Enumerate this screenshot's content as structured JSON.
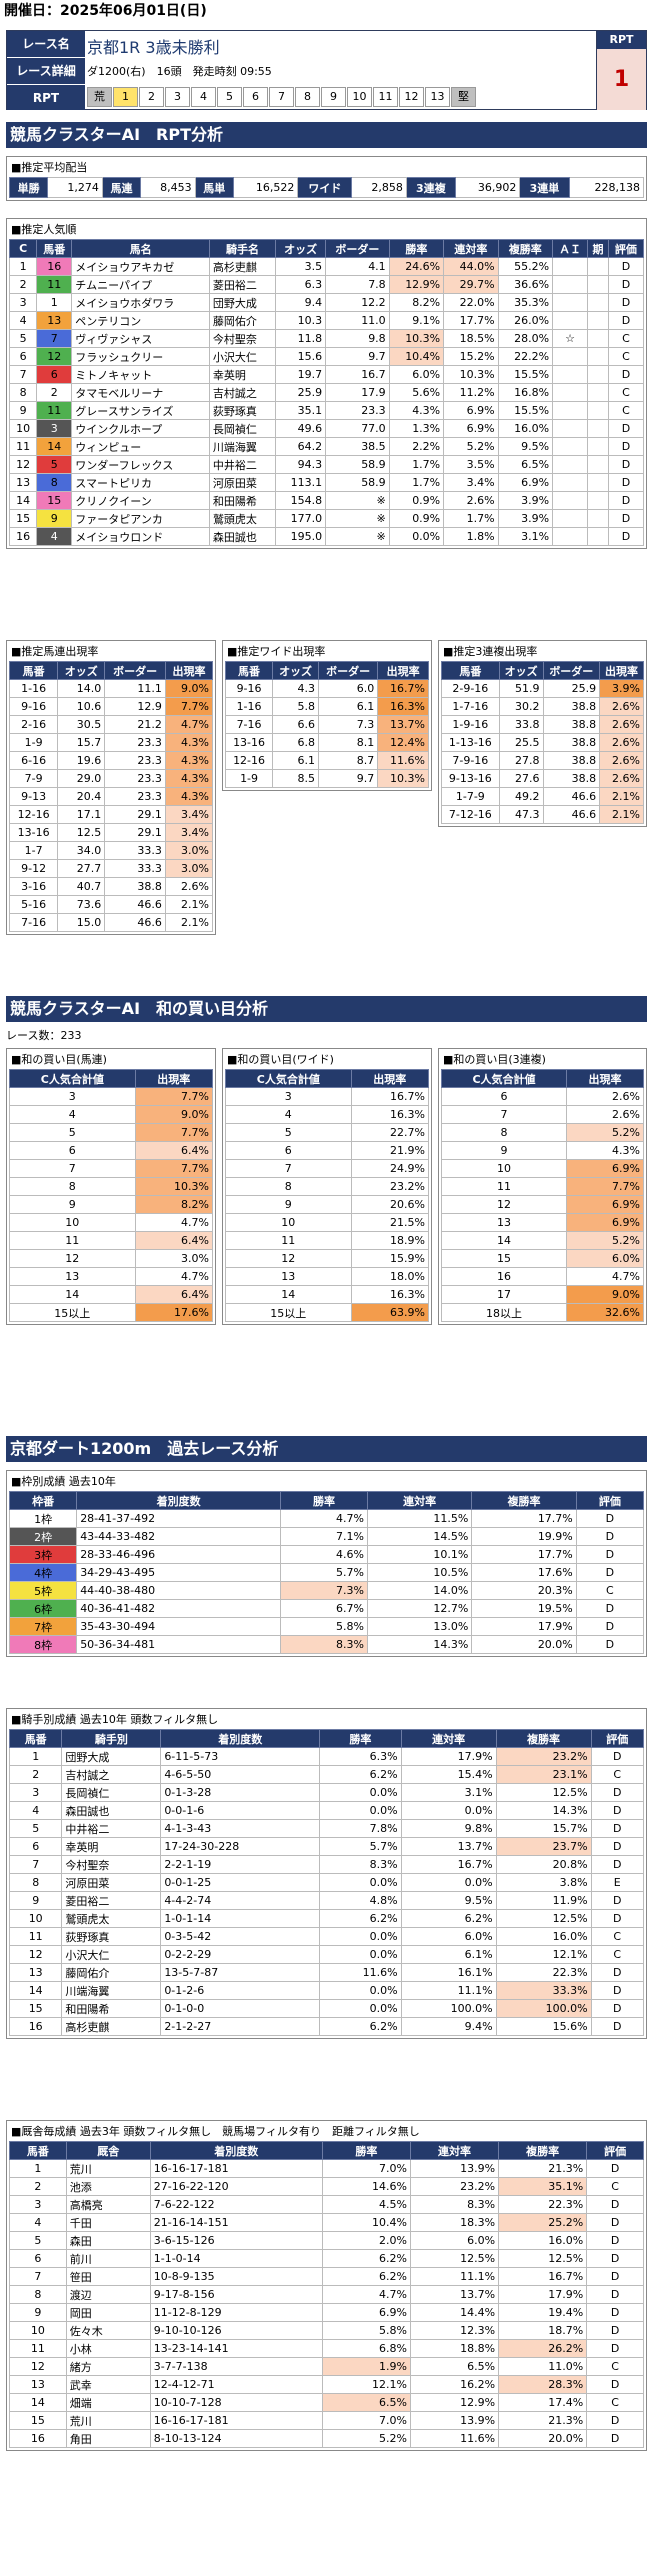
{
  "header": {
    "date_label": "開催日：2025年06月01日(日)",
    "race_label": "レース名",
    "race_name": "京都1R 3歳未勝利",
    "detail_label": "レース詳細",
    "detail": "ダ1200(右)　16頭　発走時刻 09:55",
    "rpt_label": "RPT",
    "rpt_title": "RPT",
    "rpt_value": "1",
    "bar": [
      "荒",
      "1",
      "2",
      "3",
      "4",
      "5",
      "6",
      "7",
      "8",
      "9",
      "10",
      "11",
      "12",
      "13",
      "堅"
    ]
  },
  "sec1": "競馬クラスターAI　RPT分析",
  "payout": {
    "caption": "■推定平均配当",
    "items": [
      [
        "単勝",
        "1,274"
      ],
      [
        "馬連",
        "8,453"
      ],
      [
        "馬単",
        "16,522"
      ],
      [
        "ワイド",
        "2,858"
      ],
      [
        "3連複",
        "36,902"
      ],
      [
        "3連単",
        "228,138"
      ]
    ]
  },
  "pop": {
    "caption": "■推定人気順",
    "headers": [
      "C",
      "馬番",
      "馬名",
      "騎手名",
      "オッズ",
      "ボーダー",
      "勝率",
      "連対率",
      "複勝率",
      "ＡＩ",
      "期",
      "評価"
    ],
    "rows": [
      [
        "1",
        "16",
        "メイショウアキカゼ",
        "高杉吏麒",
        "3.5",
        "4.1",
        "24.6%",
        "44.0%",
        "55.2%",
        "",
        "",
        "D"
      ],
      [
        "2",
        "11",
        "チムニーパイプ",
        "菱田裕二",
        "6.3",
        "7.8",
        "12.9%",
        "29.7%",
        "36.6%",
        "",
        "",
        "D"
      ],
      [
        "3",
        "1",
        "メイショウホダワラ",
        "団野大成",
        "9.4",
        "12.2",
        "8.2%",
        "22.0%",
        "35.3%",
        "",
        "",
        "D"
      ],
      [
        "4",
        "13",
        "ペンテリコン",
        "藤岡佑介",
        "10.3",
        "11.0",
        "9.1%",
        "17.7%",
        "26.0%",
        "",
        "",
        "D"
      ],
      [
        "5",
        "7",
        "ヴィヴァシャス",
        "今村聖奈",
        "11.8",
        "9.8",
        "10.3%",
        "18.5%",
        "28.0%",
        "☆",
        "",
        "C"
      ],
      [
        "6",
        "12",
        "フラッシュクリー",
        "小沢大仁",
        "15.6",
        "9.7",
        "10.4%",
        "15.2%",
        "22.2%",
        "",
        "",
        "C"
      ],
      [
        "7",
        "6",
        "ミトノキャット",
        "幸英明",
        "19.7",
        "16.7",
        "6.0%",
        "10.3%",
        "15.5%",
        "",
        "",
        "D"
      ],
      [
        "8",
        "2",
        "タマモベルリーナ",
        "吉村誠之",
        "25.9",
        "17.9",
        "5.6%",
        "11.2%",
        "16.8%",
        "",
        "",
        "C"
      ],
      [
        "9",
        "11",
        "グレースサンライズ",
        "荻野琢真",
        "35.1",
        "23.3",
        "4.3%",
        "6.9%",
        "15.5%",
        "",
        "",
        "C"
      ],
      [
        "10",
        "3",
        "ウインクルホープ",
        "長岡禎仁",
        "49.6",
        "77.0",
        "1.3%",
        "6.9%",
        "16.0%",
        "",
        "",
        "D"
      ],
      [
        "11",
        "14",
        "ウィンピュー",
        "川端海翼",
        "64.2",
        "38.5",
        "2.2%",
        "5.2%",
        "9.5%",
        "",
        "",
        "D"
      ],
      [
        "12",
        "5",
        "ワンダーフレックス",
        "中井裕二",
        "94.3",
        "58.9",
        "1.7%",
        "3.5%",
        "6.5%",
        "",
        "",
        "D"
      ],
      [
        "13",
        "8",
        "スマートピリカ",
        "河原田菜",
        "113.1",
        "58.9",
        "1.7%",
        "3.4%",
        "6.9%",
        "",
        "",
        "D"
      ],
      [
        "14",
        "15",
        "クリノクイーン",
        "和田陽希",
        "154.8",
        "※",
        "0.9%",
        "2.6%",
        "3.9%",
        "",
        "",
        "D"
      ],
      [
        "15",
        "9",
        "ファータピアンカ",
        "鷲頭虎太",
        "177.0",
        "※",
        "0.9%",
        "1.7%",
        "3.9%",
        "",
        "",
        "D"
      ],
      [
        "16",
        "4",
        "メイショウロンド",
        "森田誠也",
        "195.0",
        "※",
        "0.0%",
        "1.8%",
        "3.1%",
        "",
        "",
        "D"
      ]
    ]
  },
  "umaren": {
    "caption": "■推定馬連出現率",
    "headers": [
      "馬番",
      "オッズ",
      "ボーダー",
      "出現率"
    ],
    "rows": [
      [
        "1-16",
        "14.0",
        "11.1",
        "9.0%"
      ],
      [
        "9-16",
        "10.6",
        "12.9",
        "7.7%"
      ],
      [
        "2-16",
        "30.5",
        "21.2",
        "4.7%"
      ],
      [
        "1-9",
        "15.7",
        "23.3",
        "4.3%"
      ],
      [
        "6-16",
        "19.6",
        "23.3",
        "4.3%"
      ],
      [
        "7-9",
        "29.0",
        "23.3",
        "4.3%"
      ],
      [
        "9-13",
        "20.4",
        "23.3",
        "4.3%"
      ],
      [
        "12-16",
        "17.1",
        "29.1",
        "3.4%"
      ],
      [
        "13-16",
        "12.5",
        "29.1",
        "3.4%"
      ],
      [
        "1-7",
        "34.0",
        "33.3",
        "3.0%"
      ],
      [
        "9-12",
        "27.7",
        "33.3",
        "3.0%"
      ],
      [
        "3-16",
        "40.7",
        "38.8",
        "2.6%"
      ],
      [
        "5-16",
        "73.6",
        "46.6",
        "2.1%"
      ],
      [
        "7-16",
        "15.0",
        "46.6",
        "2.1%"
      ]
    ]
  },
  "wide": {
    "caption": "■推定ワイド出現率",
    "headers": [
      "馬番",
      "オッズ",
      "ボーダー",
      "出現率"
    ],
    "rows": [
      [
        "9-16",
        "4.3",
        "6.0",
        "16.7%"
      ],
      [
        "1-16",
        "5.8",
        "6.1",
        "16.3%"
      ],
      [
        "7-16",
        "6.6",
        "7.3",
        "13.7%"
      ],
      [
        "13-16",
        "6.8",
        "8.1",
        "12.4%"
      ],
      [
        "12-16",
        "6.1",
        "8.7",
        "11.6%"
      ],
      [
        "1-9",
        "8.5",
        "9.7",
        "10.3%"
      ]
    ]
  },
  "sanrenpuku": {
    "caption": "■推定3連複出現率",
    "headers": [
      "馬番",
      "オッズ",
      "ボーダー",
      "出現率"
    ],
    "rows": [
      [
        "2-9-16",
        "51.9",
        "25.9",
        "3.9%"
      ],
      [
        "1-7-16",
        "30.2",
        "38.8",
        "2.6%"
      ],
      [
        "1-9-16",
        "33.8",
        "38.8",
        "2.6%"
      ],
      [
        "1-13-16",
        "25.5",
        "38.8",
        "2.6%"
      ],
      [
        "7-9-16",
        "27.8",
        "38.8",
        "2.6%"
      ],
      [
        "9-13-16",
        "27.6",
        "38.8",
        "2.6%"
      ],
      [
        "1-7-9",
        "49.2",
        "46.6",
        "2.1%"
      ],
      [
        "7-12-16",
        "47.3",
        "46.6",
        "2.1%"
      ]
    ]
  },
  "sec2": "競馬クラスターAI　和の買い目分析",
  "race_count": "レース数：233",
  "sum_umaren": {
    "caption": "■和の買い目(馬連)",
    "headers": [
      "C人気合計値",
      "出現率"
    ],
    "rows": [
      [
        "3",
        "7.7%"
      ],
      [
        "4",
        "9.0%"
      ],
      [
        "5",
        "7.7%"
      ],
      [
        "6",
        "6.4%"
      ],
      [
        "7",
        "7.7%"
      ],
      [
        "8",
        "10.3%"
      ],
      [
        "9",
        "8.2%"
      ],
      [
        "10",
        "4.7%"
      ],
      [
        "11",
        "6.4%"
      ],
      [
        "12",
        "3.0%"
      ],
      [
        "13",
        "4.7%"
      ],
      [
        "14",
        "6.4%"
      ],
      [
        "15以上",
        "17.6%"
      ]
    ]
  },
  "sum_wide": {
    "caption": "■和の買い目(ワイド)",
    "headers": [
      "C人気合計値",
      "出現率"
    ],
    "rows": [
      [
        "3",
        "16.7%"
      ],
      [
        "4",
        "16.3%"
      ],
      [
        "5",
        "22.7%"
      ],
      [
        "6",
        "21.9%"
      ],
      [
        "7",
        "24.9%"
      ],
      [
        "8",
        "23.2%"
      ],
      [
        "9",
        "20.6%"
      ],
      [
        "10",
        "21.5%"
      ],
      [
        "11",
        "18.9%"
      ],
      [
        "12",
        "15.9%"
      ],
      [
        "13",
        "18.0%"
      ],
      [
        "14",
        "16.3%"
      ],
      [
        "15以上",
        "63.9%"
      ]
    ]
  },
  "sum_3fuku": {
    "caption": "■和の買い目(3連複)",
    "headers": [
      "C人気合計値",
      "出現率"
    ],
    "rows": [
      [
        "6",
        "2.6%"
      ],
      [
        "7",
        "2.6%"
      ],
      [
        "8",
        "5.2%"
      ],
      [
        "9",
        "4.3%"
      ],
      [
        "10",
        "6.9%"
      ],
      [
        "11",
        "7.7%"
      ],
      [
        "12",
        "6.9%"
      ],
      [
        "13",
        "6.9%"
      ],
      [
        "14",
        "5.2%"
      ],
      [
        "15",
        "6.0%"
      ],
      [
        "16",
        "4.7%"
      ],
      [
        "17",
        "9.0%"
      ],
      [
        "18以上",
        "32.6%"
      ]
    ]
  },
  "sec3": "京都ダート1200m　過去レース分析",
  "waku": {
    "caption": "■枠別成績 過去10年",
    "headers": [
      "枠番",
      "着別度数",
      "勝率",
      "連対率",
      "複勝率",
      "評価"
    ],
    "rows": [
      [
        "1枠",
        "28-41-37-492",
        "4.7%",
        "11.5%",
        "17.7%",
        "D"
      ],
      [
        "2枠",
        "43-44-33-482",
        "7.1%",
        "14.5%",
        "19.9%",
        "D"
      ],
      [
        "3枠",
        "28-33-46-496",
        "4.6%",
        "10.1%",
        "17.7%",
        "D"
      ],
      [
        "4枠",
        "34-29-43-495",
        "5.7%",
        "10.5%",
        "17.6%",
        "D"
      ],
      [
        "5枠",
        "44-40-38-480",
        "7.3%",
        "14.0%",
        "20.3%",
        "C"
      ],
      [
        "6枠",
        "40-36-41-482",
        "6.7%",
        "12.7%",
        "19.5%",
        "D"
      ],
      [
        "7枠",
        "35-43-30-494",
        "5.8%",
        "13.0%",
        "17.9%",
        "D"
      ],
      [
        "8枠",
        "50-36-34-481",
        "8.3%",
        "14.3%",
        "20.0%",
        "D"
      ]
    ]
  },
  "jockey": {
    "caption": "■騎手別成績 過去10年 頭数フィルタ無し",
    "headers": [
      "馬番",
      "騎手別",
      "着別度数",
      "勝率",
      "連対率",
      "複勝率",
      "評価"
    ],
    "rows": [
      [
        "1",
        "団野大成",
        "6-11-5-73",
        "6.3%",
        "17.9%",
        "23.2%",
        "D"
      ],
      [
        "2",
        "吉村誠之",
        "4-6-5-50",
        "6.2%",
        "15.4%",
        "23.1%",
        "C"
      ],
      [
        "3",
        "長岡禎仁",
        "0-1-3-28",
        "0.0%",
        "3.1%",
        "12.5%",
        "D"
      ],
      [
        "4",
        "森田誠也",
        "0-0-1-6",
        "0.0%",
        "0.0%",
        "14.3%",
        "D"
      ],
      [
        "5",
        "中井裕二",
        "4-1-3-43",
        "7.8%",
        "9.8%",
        "15.7%",
        "D"
      ],
      [
        "6",
        "幸英明",
        "17-24-30-228",
        "5.7%",
        "13.7%",
        "23.7%",
        "D"
      ],
      [
        "7",
        "今村聖奈",
        "2-2-1-19",
        "8.3%",
        "16.7%",
        "20.8%",
        "D"
      ],
      [
        "8",
        "河原田菜",
        "0-0-1-25",
        "0.0%",
        "0.0%",
        "3.8%",
        "E"
      ],
      [
        "9",
        "菱田裕二",
        "4-4-2-74",
        "4.8%",
        "9.5%",
        "11.9%",
        "D"
      ],
      [
        "10",
        "鷲頭虎太",
        "1-0-1-14",
        "6.2%",
        "6.2%",
        "12.5%",
        "D"
      ],
      [
        "11",
        "荻野琢真",
        "0-3-5-42",
        "0.0%",
        "6.0%",
        "16.0%",
        "C"
      ],
      [
        "12",
        "小沢大仁",
        "0-2-2-29",
        "0.0%",
        "6.1%",
        "12.1%",
        "C"
      ],
      [
        "13",
        "藤岡佑介",
        "13-5-7-87",
        "11.6%",
        "16.1%",
        "22.3%",
        "D"
      ],
      [
        "14",
        "川端海翼",
        "0-1-2-6",
        "0.0%",
        "11.1%",
        "33.3%",
        "D"
      ],
      [
        "15",
        "和田陽希",
        "0-1-0-0",
        "0.0%",
        "100.0%",
        "100.0%",
        "D"
      ],
      [
        "16",
        "高杉吏麒",
        "2-1-2-27",
        "6.2%",
        "9.4%",
        "15.6%",
        "D"
      ]
    ]
  },
  "trainer": {
    "caption": "■厩舎毎成績 過去3年 頭数フィルタ無し　競馬場フィルタ有り　距離フィルタ無し",
    "headers": [
      "馬番",
      "厩舎",
      "着別度数",
      "勝率",
      "連対率",
      "複勝率",
      "評価"
    ],
    "rows": [
      [
        "1",
        "荒川",
        "16-16-17-181",
        "7.0%",
        "13.9%",
        "21.3%",
        "D"
      ],
      [
        "2",
        "池添",
        "27-16-22-120",
        "14.6%",
        "23.2%",
        "35.1%",
        "C"
      ],
      [
        "3",
        "高橋亮",
        "7-6-22-122",
        "4.5%",
        "8.3%",
        "22.3%",
        "D"
      ],
      [
        "4",
        "千田",
        "21-16-14-151",
        "10.4%",
        "18.3%",
        "25.2%",
        "D"
      ],
      [
        "5",
        "森田",
        "3-6-15-126",
        "2.0%",
        "6.0%",
        "16.0%",
        "D"
      ],
      [
        "6",
        "前川",
        "1-1-0-14",
        "6.2%",
        "12.5%",
        "12.5%",
        "D"
      ],
      [
        "7",
        "笹田",
        "10-8-9-135",
        "6.2%",
        "11.1%",
        "16.7%",
        "D"
      ],
      [
        "8",
        "渡辺",
        "9-17-8-156",
        "4.7%",
        "13.7%",
        "17.9%",
        "D"
      ],
      [
        "9",
        "岡田",
        "11-12-8-129",
        "6.9%",
        "14.4%",
        "19.4%",
        "D"
      ],
      [
        "10",
        "佐々木",
        "9-10-10-126",
        "5.8%",
        "12.3%",
        "18.7%",
        "D"
      ],
      [
        "11",
        "小林",
        "13-23-14-141",
        "6.8%",
        "18.8%",
        "26.2%",
        "D"
      ],
      [
        "12",
        "緒方",
        "3-7-7-138",
        "1.9%",
        "6.5%",
        "11.0%",
        "C"
      ],
      [
        "13",
        "武幸",
        "12-4-12-71",
        "12.1%",
        "16.2%",
        "28.3%",
        "D"
      ],
      [
        "14",
        "畑端",
        "10-10-7-128",
        "6.5%",
        "12.9%",
        "17.4%",
        "C"
      ],
      [
        "15",
        "荒川",
        "16-16-17-181",
        "7.0%",
        "13.9%",
        "21.3%",
        "D"
      ],
      [
        "16",
        "角田",
        "8-10-13-124",
        "5.2%",
        "11.6%",
        "20.0%",
        "D"
      ]
    ]
  },
  "colors": {
    "navy": "#243a6b",
    "waku": [
      "#ffffff",
      "#555555",
      "#e03c3c",
      "#4a6bd8",
      "#f5e240",
      "#4fb04f",
      "#f2a23c",
      "#f07ab8"
    ]
  }
}
